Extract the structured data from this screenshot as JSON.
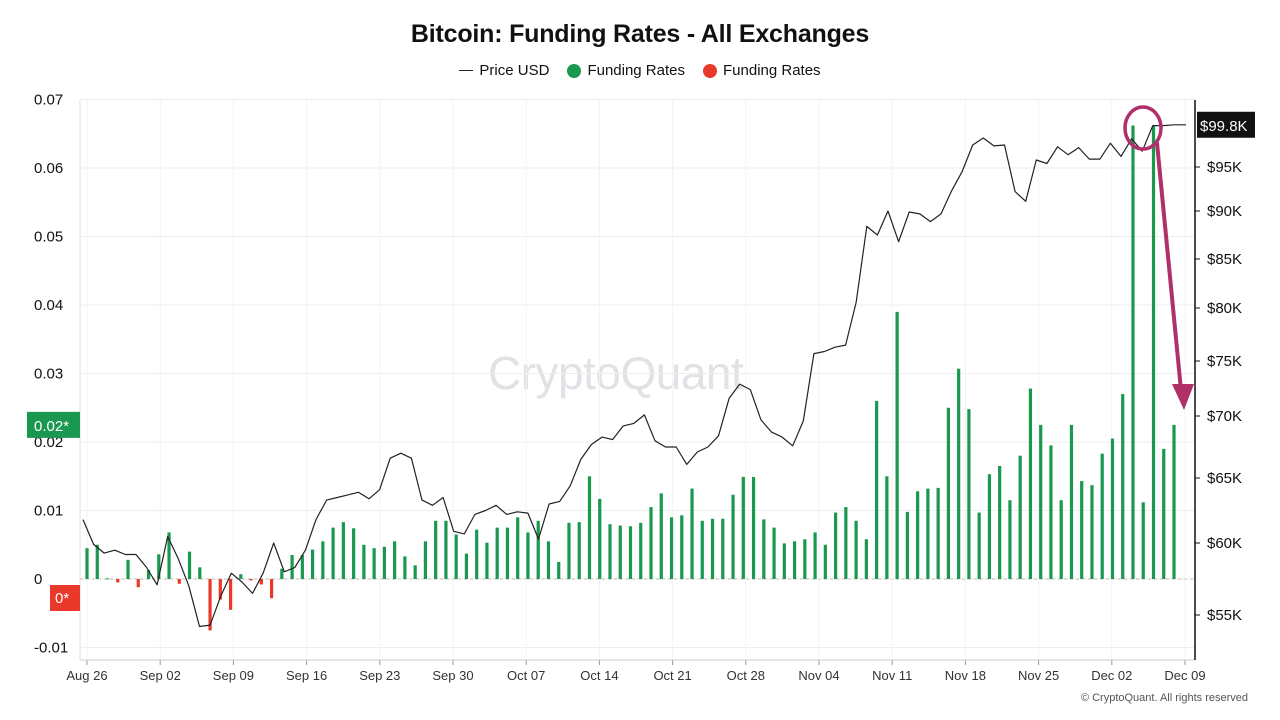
{
  "header": {
    "title": "Bitcoin: Funding Rates - All Exchanges"
  },
  "legend": [
    {
      "label": "Price USD",
      "kind": "line",
      "color": "#222222"
    },
    {
      "label": "Funding Rates",
      "kind": "dot",
      "color": "#1a9850"
    },
    {
      "label": "Funding Rates",
      "kind": "dot",
      "color": "#e8392a"
    }
  ],
  "watermark": "CryptoQuant",
  "copyright": "© CryptoQuant. All rights reserved",
  "chart_data": {
    "type": "bar",
    "title": "Bitcoin: Funding Rates - All Exchanges",
    "x_ticks": [
      "Aug 26",
      "Sep 02",
      "Sep 09",
      "Sep 16",
      "Sep 23",
      "Sep 30",
      "Oct 07",
      "Oct 14",
      "Oct 21",
      "Oct 28",
      "Nov 04",
      "Nov 11",
      "Nov 18",
      "Nov 25",
      "Dec 02",
      "Dec 09"
    ],
    "y_left": {
      "ticks": [
        "0.07",
        "0.06",
        "0.05",
        "0.04",
        "0.03",
        "0.02",
        "0.01",
        "0",
        "-0.01"
      ],
      "min": -0.01,
      "max": 0.07
    },
    "y_right": {
      "ticks": [
        "$95K",
        "$90K",
        "$85K",
        "$80K",
        "$75K",
        "$70K",
        "$65K",
        "$60K",
        "$55K"
      ],
      "min": 52000,
      "max": 102000
    },
    "markers": {
      "left_current": "0.02*",
      "left_zero": "0*",
      "right_current": "$99.8K"
    },
    "colors": {
      "positive": "#1a9850",
      "negative": "#e8392a",
      "price": "#222222",
      "annotation": "#b0306a"
    },
    "series": [
      {
        "name": "Funding Rates",
        "values": [
          0.0045,
          0.005,
          0.0001,
          -0.0005,
          0.0028,
          -0.0012,
          0.0013,
          0.0036,
          0.0068,
          -0.0007,
          0.004,
          0.0017,
          -0.0075,
          -0.003,
          -0.0045,
          0.0007,
          -0.0002,
          -0.0008,
          -0.0028,
          0.0015,
          0.0035,
          0.0035,
          0.0043,
          0.0055,
          0.0075,
          0.0083,
          0.0074,
          0.005,
          0.0045,
          0.0047,
          0.0055,
          0.0033,
          0.002,
          0.0055,
          0.0085,
          0.0085,
          0.0065,
          0.0037,
          0.0072,
          0.0053,
          0.0075,
          0.0075,
          0.009,
          0.0068,
          0.0085,
          0.0055,
          0.0025,
          0.0082,
          0.0083,
          0.015,
          0.0117,
          0.008,
          0.0078,
          0.0077,
          0.0082,
          0.0105,
          0.0125,
          0.009,
          0.0093,
          0.0132,
          0.0085,
          0.0088,
          0.0088,
          0.0123,
          0.0149,
          0.0149,
          0.0087,
          0.0075,
          0.0052,
          0.0055,
          0.0058,
          0.0068,
          0.005,
          0.0097,
          0.0105,
          0.0085,
          0.0058,
          0.026,
          0.015,
          0.039,
          0.0098,
          0.0128,
          0.0132,
          0.0133,
          0.025,
          0.0307,
          0.0248,
          0.0097,
          0.0153,
          0.0165,
          0.0115,
          0.018,
          0.0278,
          0.0225,
          0.0195,
          0.0115,
          0.0225,
          0.0143,
          0.0137,
          0.0183,
          0.0205,
          0.027,
          0.0662,
          0.0112,
          0.0662,
          0.019,
          0.0225
        ]
      },
      {
        "name": "Price USD",
        "values": [
          61800,
          59900,
          59300,
          59500,
          59200,
          59200,
          58300,
          57100,
          60500,
          58900,
          57000,
          54200,
          54300,
          56300,
          57900,
          57300,
          56500,
          57900,
          60000,
          58000,
          58300,
          59500,
          61800,
          63300,
          63500,
          63700,
          63900,
          63400,
          64100,
          66600,
          67000,
          66600,
          63300,
          62900,
          63500,
          60900,
          60700,
          62200,
          62500,
          62900,
          62200,
          62400,
          62300,
          60300,
          63000,
          63200,
          64400,
          66500,
          67700,
          68300,
          68100,
          69200,
          69400,
          70100,
          68000,
          67500,
          67500,
          66100,
          67100,
          67500,
          68400,
          71600,
          72900,
          72400,
          69700,
          68700,
          68300,
          67600,
          69600,
          75700,
          75900,
          76300,
          76500,
          80600,
          88400,
          87500,
          90000,
          86800,
          89900,
          89700,
          88900,
          89700,
          92300,
          94500,
          97500,
          98300,
          97400,
          97500,
          92200,
          91100,
          95800,
          95400,
          97300,
          96400,
          97200,
          95900,
          95900,
          97700,
          96200,
          98200,
          96800,
          99700,
          99700,
          99800
        ]
      }
    ],
    "price_start_index": 0,
    "price_end_index": 103
  }
}
